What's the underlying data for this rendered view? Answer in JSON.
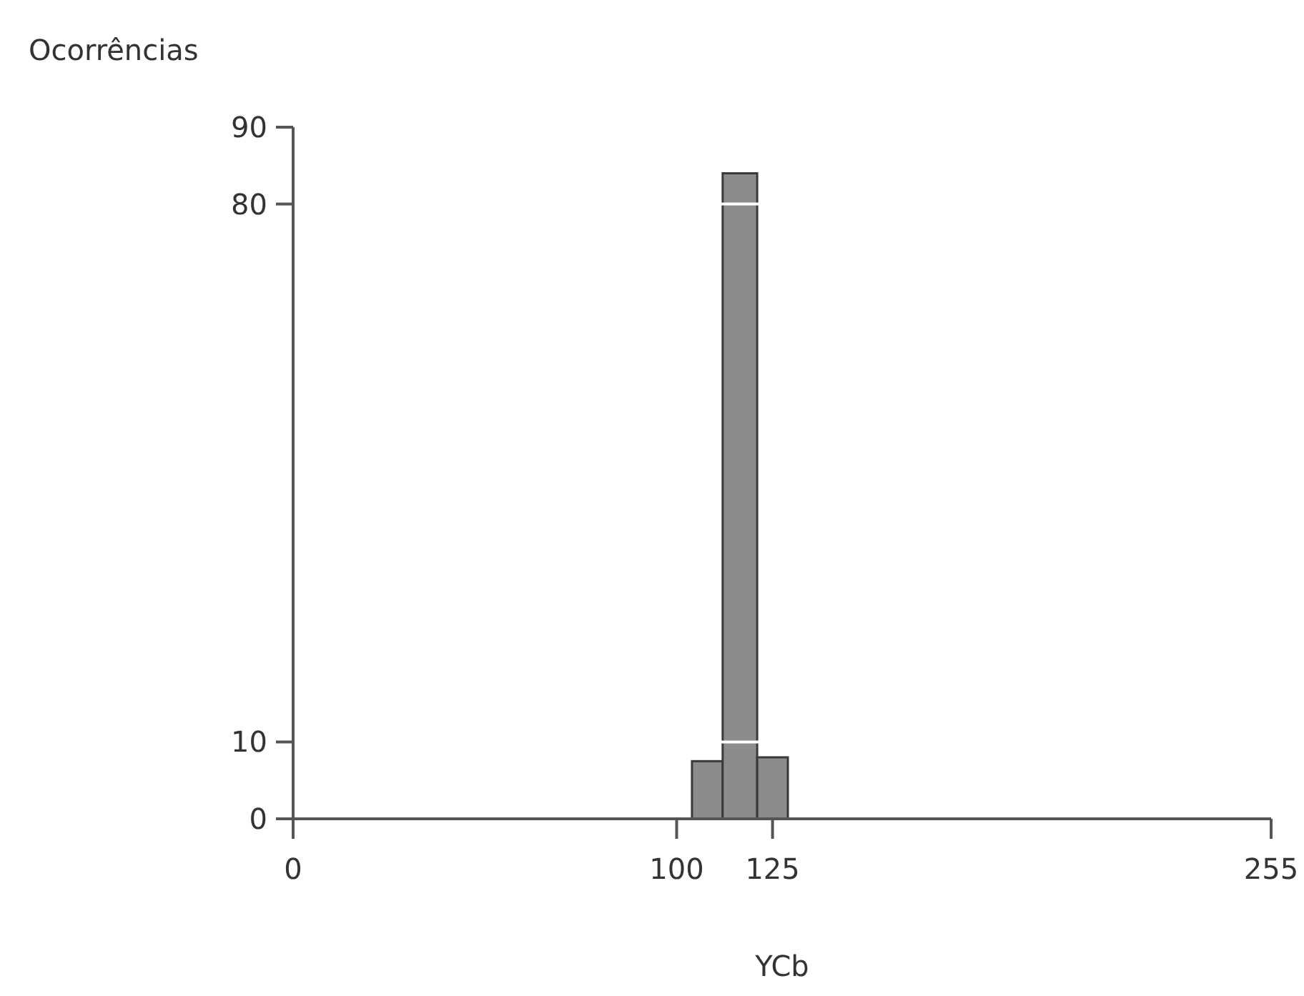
{
  "chart_data": {
    "type": "histogram",
    "xlabel": "YCb",
    "ylabel": "Ocorrências",
    "bins": [
      104,
      112,
      121,
      129
    ],
    "values": [
      7.5,
      84,
      8
    ],
    "color": "#8c8c8c",
    "xlim": [
      0,
      255
    ],
    "xticks": [
      0,
      100,
      125,
      255
    ],
    "ylim": [
      0,
      90
    ],
    "yticks": [
      0,
      10,
      80,
      90
    ],
    "grid": "y"
  }
}
